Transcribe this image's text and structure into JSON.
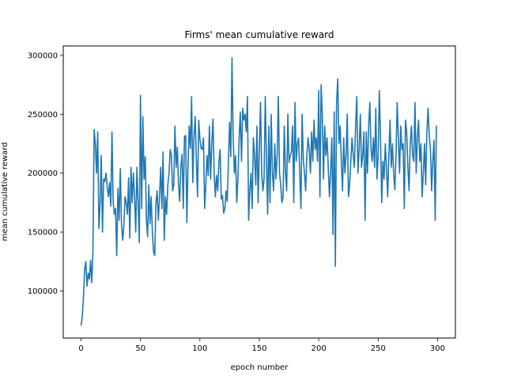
{
  "chart_data": {
    "type": "line",
    "title": "Firms' mean cumulative reward",
    "xlabel": "epoch number",
    "ylabel": "mean cumulative reward",
    "xlim": [
      -15,
      315
    ],
    "ylim": [
      60000,
      308000
    ],
    "xticks": [
      0,
      50,
      100,
      150,
      200,
      250,
      300
    ],
    "xtick_labels": [
      "0",
      "50",
      "100",
      "150",
      "200",
      "250",
      "300"
    ],
    "yticks": [
      100000,
      150000,
      200000,
      250000,
      300000
    ],
    "ytick_labels": [
      "100000",
      "150000",
      "200000",
      "250000",
      "300000"
    ],
    "grid": false,
    "line_color": "#1f77b4",
    "series": [
      {
        "x": [
          0,
          1,
          2,
          3,
          4,
          5,
          6,
          7,
          8,
          9,
          10,
          11,
          12,
          13,
          14,
          15,
          16,
          17,
          18,
          19,
          20,
          21,
          22,
          23,
          24,
          25,
          26,
          27,
          28,
          29,
          30,
          31,
          32,
          33,
          34,
          35,
          36,
          37,
          38,
          39,
          40,
          41,
          42,
          43,
          44,
          45,
          46,
          47,
          48,
          49,
          50,
          51,
          52,
          53,
          54,
          55,
          56,
          57,
          58,
          59,
          60,
          61,
          62,
          63,
          64,
          65,
          66,
          67,
          68,
          69,
          70,
          71,
          72,
          73,
          74,
          75,
          76,
          77,
          78,
          79,
          80,
          81,
          82,
          83,
          84,
          85,
          86,
          87,
          88,
          89,
          90,
          91,
          92,
          93,
          94,
          95,
          96,
          97,
          98,
          99,
          100,
          101,
          102,
          103,
          104,
          105,
          106,
          107,
          108,
          109,
          110,
          111,
          112,
          113,
          114,
          115,
          116,
          117,
          118,
          119,
          120,
          121,
          122,
          123,
          124,
          125,
          126,
          127,
          128,
          129,
          130,
          131,
          132,
          133,
          134,
          135,
          136,
          137,
          138,
          139,
          140,
          141,
          142,
          143,
          144,
          145,
          146,
          147,
          148,
          149,
          150,
          151,
          152,
          153,
          154,
          155,
          156,
          157,
          158,
          159,
          160,
          161,
          162,
          163,
          164,
          165,
          166,
          167,
          168,
          169,
          170,
          171,
          172,
          173,
          174,
          175,
          176,
          177,
          178,
          179,
          180,
          181,
          182,
          183,
          184,
          185,
          186,
          187,
          188,
          189,
          190,
          191,
          192,
          193,
          194,
          195,
          196,
          197,
          198,
          199,
          200,
          201,
          202,
          203,
          204,
          205,
          206,
          207,
          208,
          209,
          210,
          211,
          212,
          213,
          214,
          215,
          216,
          217,
          218,
          219,
          220,
          221,
          222,
          223,
          224,
          225,
          226,
          227,
          228,
          229,
          230,
          231,
          232,
          233,
          234,
          235,
          236,
          237,
          238,
          239,
          240,
          241,
          242,
          243,
          244,
          245,
          246,
          247,
          248,
          249,
          250,
          251,
          252,
          253,
          254,
          255,
          256,
          257,
          258,
          259,
          260,
          261,
          262,
          263,
          264,
          265,
          266,
          267,
          268,
          269,
          270,
          271,
          272,
          273,
          274,
          275,
          276,
          277,
          278,
          279,
          280,
          281,
          282,
          283,
          284,
          285,
          286,
          287,
          288,
          289,
          290,
          291,
          292,
          293,
          294,
          295,
          296,
          297,
          298,
          299
        ],
        "values": [
          71000,
          78000,
          95000,
          118000,
          125000,
          104000,
          115000,
          110000,
          126000,
          107000,
          135000,
          237000,
          225000,
          200000,
          235000,
          153000,
          175000,
          215000,
          150000,
          195000,
          193000,
          200000,
          188000,
          180000,
          192000,
          172000,
          235000,
          175000,
          165000,
          170000,
          130000,
          187000,
          160000,
          204000,
          157000,
          143000,
          155000,
          180000,
          175000,
          165000,
          196000,
          145000,
          205000,
          175000,
          200000,
          180000,
          150000,
          205000,
          175000,
          141000,
          266000,
          170000,
          248000,
          195000,
          214000,
          160000,
          146000,
          190000,
          157000,
          180000,
          150000,
          133000,
          130000,
          175000,
          185000,
          160000,
          180000,
          205000,
          170000,
          218000,
          143000,
          180000,
          165000,
          190000,
          200000,
          220000,
          215000,
          185000,
          190000,
          240000,
          205000,
          222000,
          190000,
          176000,
          206000,
          216000,
          170000,
          231000,
          232000,
          158000,
          207000,
          240000,
          221000,
          265000,
          192000,
          230000,
          248000,
          212000,
          180000,
          245000,
          229000,
          221000,
          220000,
          230000,
          170000,
          190000,
          215000,
          198000,
          240000,
          195000,
          225000,
          246000,
          200000,
          180000,
          198000,
          185000,
          210000,
          220000,
          178000,
          181000,
          166000,
          170000,
          185000,
          176000,
          210000,
          243000,
          214000,
          298000,
          230000,
          200000,
          215000,
          175000,
          195000,
          230000,
          252000,
          210000,
          255000,
          245000,
          250000,
          235000,
          265000,
          160000,
          185000,
          200000,
          170000,
          230000,
          215000,
          190000,
          240000,
          175000,
          220000,
          260000,
          200000,
          185000,
          195000,
          265000,
          213000,
          165000,
          240000,
          175000,
          250000,
          200000,
          185000,
          225000,
          195000,
          215000,
          265000,
          200000,
          190000,
          175000,
          180000,
          240000,
          200000,
          185000,
          250000,
          209000,
          215000,
          218000,
          240000,
          175000,
          260000,
          210000,
          225000,
          230000,
          200000,
          170000,
          250000,
          212000,
          200000,
          185000,
          215000,
          230000,
          220000,
          200000,
          235000,
          210000,
          245000,
          220000,
          230000,
          210000,
          270000,
          180000,
          275000,
          250000,
          195000,
          240000,
          215000,
          230000,
          205000,
          180000,
          200000,
          230000,
          148000,
          252000,
          121000,
          260000,
          280000,
          225000,
          240000,
          210000,
          185000,
          230000,
          200000,
          215000,
          250000,
          180000,
          190000,
          210000,
          230000,
          215000,
          205000,
          240000,
          265000,
          200000,
          220000,
          250000,
          205000,
          215000,
          235000,
          160000,
          235000,
          200000,
          240000,
          260000,
          220000,
          210000,
          230000,
          205000,
          255000,
          195000,
          215000,
          270000,
          230000,
          175000,
          210000,
          195000,
          225000,
          205000,
          180000,
          215000,
          245000,
          205000,
          225000,
          200000,
          186000,
          215000,
          260000,
          230000,
          200000,
          240000,
          220000,
          225000,
          170000,
          245000,
          235000,
          205000,
          185000,
          225000,
          240000,
          215000,
          210000,
          260000,
          200000,
          230000,
          245000,
          210000,
          225000,
          180000,
          200000,
          225000,
          190000,
          235000,
          255000,
          232000,
          220000,
          185000,
          210000,
          228000,
          160000,
          240000
        ]
      }
    ]
  }
}
